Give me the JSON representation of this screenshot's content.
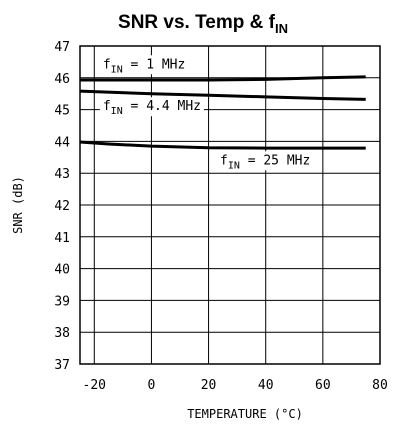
{
  "chart_data": {
    "type": "line",
    "title_main": "SNR vs. Temp & f",
    "title_sub": "IN",
    "xlabel": "TEMPERATURE (°C)",
    "ylabel": "SNR (dB)",
    "xlim": [
      -25,
      80
    ],
    "ylim": [
      37,
      47
    ],
    "x_ticks": [
      -20,
      0,
      20,
      40,
      60,
      80
    ],
    "y_ticks": [
      37,
      38,
      39,
      40,
      41,
      42,
      43,
      44,
      45,
      46,
      47
    ],
    "grid": true,
    "series": [
      {
        "label_prefix": "f",
        "label_sub": "IN",
        "label_suffix": " = 1 MHz",
        "label_pos": [
          -17,
          46.3
        ],
        "x": [
          -25,
          0,
          20,
          40,
          60,
          75
        ],
        "y": [
          45.93,
          45.93,
          45.93,
          45.95,
          46.0,
          46.03
        ]
      },
      {
        "label_prefix": "f",
        "label_sub": "IN",
        "label_suffix": " = 4.4 MHz",
        "label_pos": [
          -17,
          44.98
        ],
        "x": [
          -25,
          0,
          20,
          40,
          60,
          75
        ],
        "y": [
          45.58,
          45.5,
          45.45,
          45.4,
          45.35,
          45.32
        ]
      },
      {
        "label_prefix": "f",
        "label_sub": "IN",
        "label_suffix": " = 25 MHz",
        "label_pos": [
          24,
          43.28
        ],
        "x": [
          -25,
          -15,
          0,
          20,
          40,
          60,
          75
        ],
        "y": [
          43.98,
          43.92,
          43.85,
          43.8,
          43.79,
          43.79,
          43.79
        ]
      }
    ]
  }
}
